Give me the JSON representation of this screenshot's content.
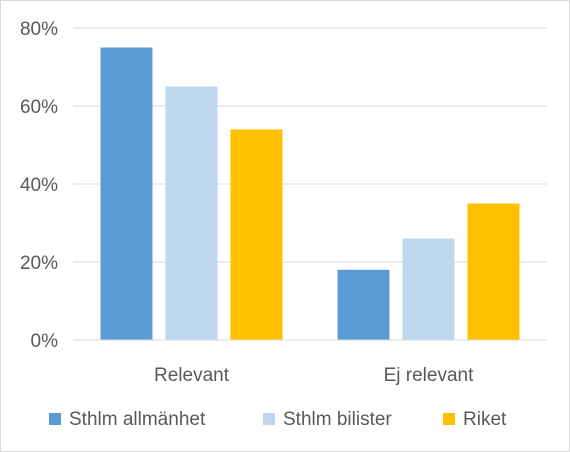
{
  "chart_data": {
    "type": "bar",
    "categories": [
      "Relevant",
      "Ej relevant"
    ],
    "series": [
      {
        "name": "Sthlm allmänhet",
        "values": [
          75,
          18
        ],
        "color": "#5b9bd5"
      },
      {
        "name": "Sthlm bilister",
        "values": [
          65,
          26
        ],
        "color": "#bdd7ee"
      },
      {
        "name": "Riket",
        "values": [
          54,
          35
        ],
        "color": "#ffc000"
      }
    ],
    "ylim": [
      0,
      80
    ],
    "yticks": [
      "0%",
      "20%",
      "40%",
      "60%",
      "80%"
    ],
    "ytick_values": [
      0,
      20,
      40,
      60,
      80
    ],
    "grid": true,
    "legend_position": "bottom",
    "title": "",
    "xlabel": "",
    "ylabel": ""
  }
}
